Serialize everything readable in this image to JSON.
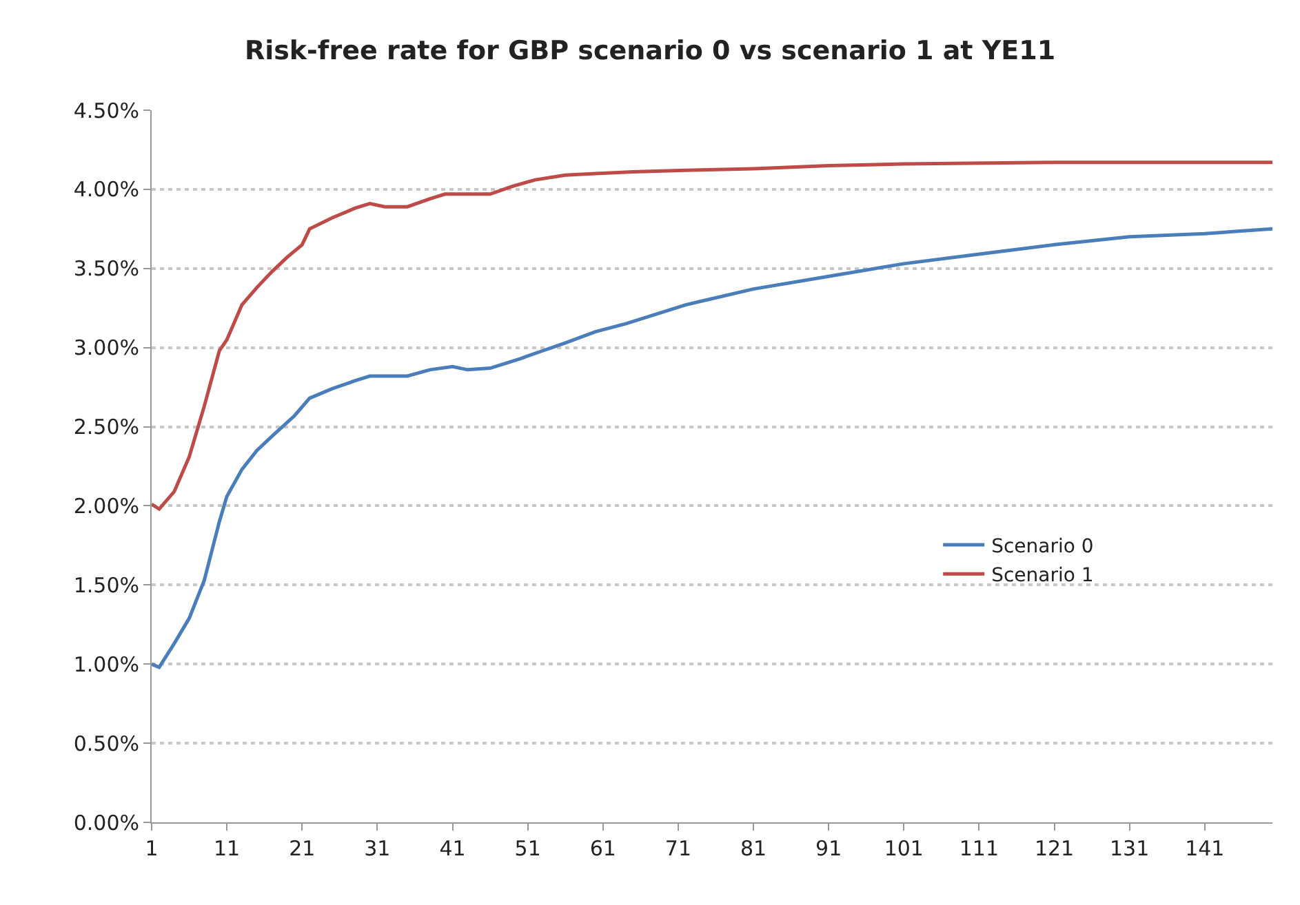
{
  "chart_data": {
    "type": "line",
    "title": "Risk-free rate for GBP scenario 0 vs scenario 1 at YE11",
    "xlim": [
      1,
      150
    ],
    "xticks": [
      1,
      11,
      21,
      31,
      41,
      51,
      61,
      71,
      81,
      91,
      101,
      111,
      121,
      131,
      141
    ],
    "ylim": [
      0,
      4.5
    ],
    "yticks": [
      {
        "value": 0,
        "label": "0.00%"
      },
      {
        "value": 0.5,
        "label": "0.50%"
      },
      {
        "value": 1,
        "label": "1.00%"
      },
      {
        "value": 1.5,
        "label": "1.50%"
      },
      {
        "value": 2,
        "label": "2.00%"
      },
      {
        "value": 2.5,
        "label": "2.50%"
      },
      {
        "value": 3,
        "label": "3.00%"
      },
      {
        "value": 3.5,
        "label": "3.50%"
      },
      {
        "value": 4,
        "label": "4.00%"
      },
      {
        "value": 4.5,
        "label": "4.50%"
      }
    ],
    "grid": "y",
    "legend": "right",
    "marker": "none",
    "line_style": "solid",
    "series": [
      {
        "name": "Scenario 0",
        "color": "#4a7ebb",
        "x": [
          1,
          2,
          4,
          6,
          8,
          10,
          11,
          13,
          15,
          17,
          20,
          22,
          25,
          28,
          30,
          35,
          38,
          41,
          43,
          46,
          50,
          53,
          56,
          60,
          64,
          68,
          72,
          81,
          91,
          101,
          111,
          121,
          131,
          141,
          150
        ],
        "values": [
          1.0,
          0.98,
          1.13,
          1.29,
          1.53,
          1.9,
          2.06,
          2.23,
          2.35,
          2.44,
          2.57,
          2.68,
          2.74,
          2.79,
          2.82,
          2.82,
          2.86,
          2.88,
          2.86,
          2.87,
          2.93,
          2.98,
          3.03,
          3.1,
          3.15,
          3.21,
          3.27,
          3.37,
          3.45,
          3.53,
          3.59,
          3.65,
          3.7,
          3.72,
          3.75
        ]
      },
      {
        "name": "Scenario 1",
        "color": "#be4b48",
        "x": [
          1,
          2,
          4,
          6,
          8,
          10,
          11,
          13,
          15,
          17,
          19,
          21,
          22,
          25,
          28,
          30,
          32,
          35,
          38,
          40,
          43,
          46,
          49,
          52,
          56,
          60,
          65,
          72,
          81,
          91,
          101,
          121,
          150
        ],
        "values": [
          2.01,
          1.98,
          2.09,
          2.31,
          2.63,
          2.98,
          3.05,
          3.27,
          3.38,
          3.48,
          3.57,
          3.65,
          3.75,
          3.82,
          3.88,
          3.91,
          3.89,
          3.89,
          3.94,
          3.97,
          3.97,
          3.97,
          4.02,
          4.06,
          4.09,
          4.1,
          4.11,
          4.12,
          4.13,
          4.15,
          4.16,
          4.17,
          4.17
        ]
      }
    ]
  }
}
